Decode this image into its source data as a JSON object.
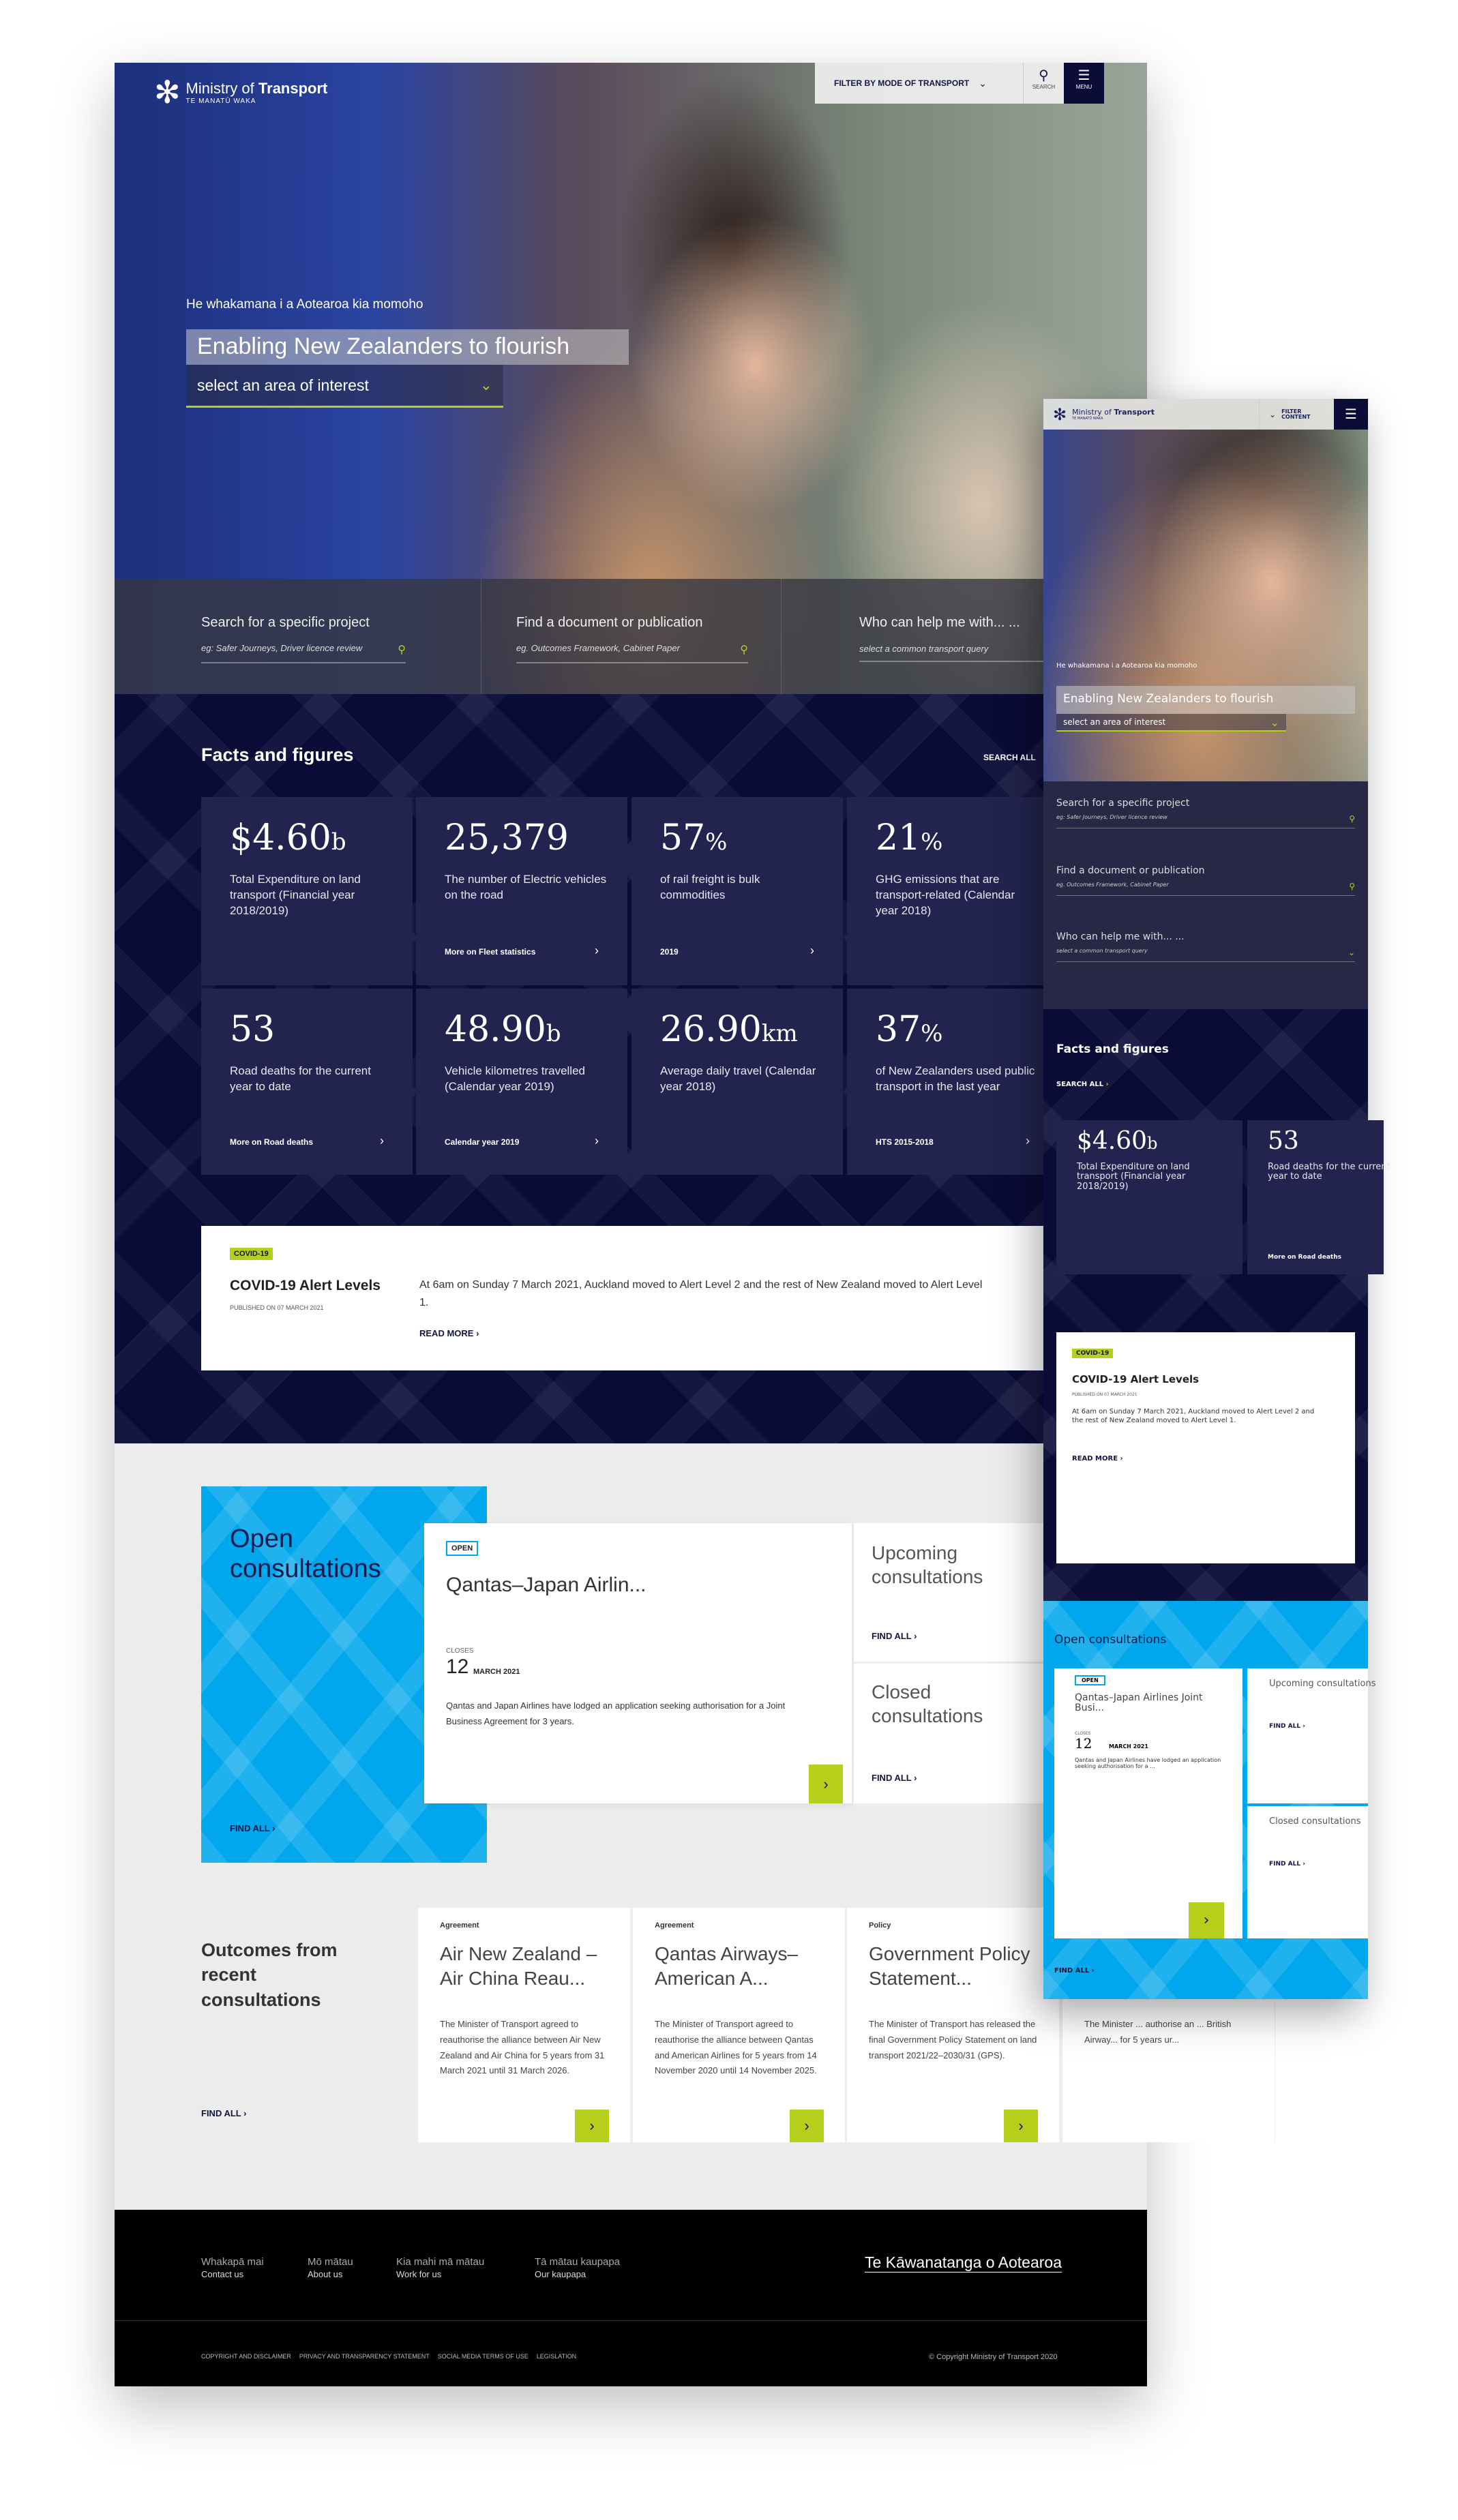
{
  "brand": {
    "name_light": "Ministry of ",
    "name_bold": "Transport",
    "sub": "TE MANATŪ WAKA"
  },
  "header": {
    "filter_label": "FILTER BY MODE OF TRANSPORT",
    "search_label": "SEARCH",
    "menu_label": "MENU"
  },
  "hero": {
    "tagline": "He whakamana i a Aotearoa kia momoho",
    "title": "Enabling New Zealanders to flourish",
    "select_placeholder": "select an area of interest"
  },
  "search": [
    {
      "label": "Search for a specific project",
      "placeholder": "eg: Safer Journeys, Driver licence review",
      "icon": "search-icon"
    },
    {
      "label": "Find a document or publication",
      "placeholder": "eg. Outcomes Framework, Cabinet Paper",
      "icon": "search-icon"
    },
    {
      "label": "Who can help me with... ...",
      "placeholder": "select a common transport query",
      "icon": "chevron-down-icon"
    }
  ],
  "facts": {
    "title": "Facts and figures",
    "search_all": "SEARCH ALL",
    "items": [
      {
        "value": "$4.60",
        "unit": "b",
        "label": "Total Expenditure on land transport (Financial year 2018/2019)",
        "link": ""
      },
      {
        "value": "25,379",
        "unit": "",
        "label": "The number of Electric vehicles on the road",
        "link": "More on Fleet statistics"
      },
      {
        "value": "57",
        "unit": "%",
        "label": "of rail freight is bulk commodities",
        "link": "2019"
      },
      {
        "value": "21",
        "unit": "%",
        "label": "GHG emissions that are transport-related (Calendar year 2018)",
        "link": ""
      },
      {
        "value": "53",
        "unit": "",
        "label": "Road deaths for the current year to date",
        "link": "More on Road deaths"
      },
      {
        "value": "48.90",
        "unit": "b",
        "label": "Vehicle kilometres travelled (Calendar year 2019)",
        "link": "Calendar year 2019"
      },
      {
        "value": "26.90",
        "unit": "km",
        "label": "Average daily travel (Calendar year 2018)",
        "link": ""
      },
      {
        "value": "37",
        "unit": "%",
        "label": "of New Zealanders used public transport in the last year",
        "link": "HTS 2015-2018"
      }
    ]
  },
  "covid": {
    "tag": "COVID-19",
    "title": "COVID-19 Alert Levels",
    "published": "PUBLISHED ON 07 MARCH 2021",
    "body": "At 6am on Sunday 7 March 2021, Auckland moved to Alert Level 2 and the rest of New Zealand moved to Alert Level 1.",
    "read_more": "READ MORE"
  },
  "consultations": {
    "title": "Open consultations",
    "find_all": "FIND ALL",
    "open_card": {
      "badge": "OPEN",
      "title": "Qantas–Japan Airlin...",
      "title_mobile": "Qantas–Japan Airlines Joint Busi...",
      "closes_label": "CLOSES",
      "day": "12",
      "month": "MARCH 2021",
      "body": "Qantas and Japan Airlines have lodged an application seeking authorisation for a Joint Business Agreement for 3 years.",
      "body_mobile": "Qantas and Japan Airlines have lodged an application seeking authorisation for a ..."
    },
    "upcoming": {
      "title": "Upcoming consultations",
      "link": "FIND ALL"
    },
    "closed": {
      "title": "Closed consultations",
      "link": "FIND ALL"
    }
  },
  "outcomes": {
    "title": "Outcomes from recent consultations",
    "find_all": "FIND ALL",
    "items": [
      {
        "type": "Agreement",
        "title": "Air New Zealand – Air China Reau...",
        "body": "The Minister of Transport agreed to reauthorise the alliance between Air New Zealand and Air China for 5 years from 31 March 2021 until 31 March 2026."
      },
      {
        "type": "Agreement",
        "title": "Qantas Airways–American A...",
        "body": "The Minister of Transport agreed to reauthorise the alliance between Qantas and American Airlines for 5 years from 14 November 2020 until 14 November 2025."
      },
      {
        "type": "Policy",
        "title": "Government Policy Statement...",
        "body": "The Minister of Transport  has released the final Government Policy Statement on land transport 2021/22–2030/31 (GPS)."
      },
      {
        "type": "",
        "title": "",
        "body": "The Minister ... authorise an ... British Airway... for 5 years ur..."
      }
    ]
  },
  "footer": {
    "links": [
      {
        "maori": "Whakapā mai",
        "english": "Contact us"
      },
      {
        "maori": "Mō mātau",
        "english": "About us"
      },
      {
        "maori": "Kia mahi mā mātau",
        "english": "Work for us"
      },
      {
        "maori": "Tā mātau kaupapa",
        "english": "Our kaupapa"
      }
    ],
    "govt_logo": "Te Kāwanatanga o Aotearoa",
    "legal": [
      "COPYRIGHT AND DISCLAIMER",
      "PRIVACY AND TRANSPARENCY STATEMENT",
      "SOCIAL MEDIA TERMS OF USE",
      "LEGISLATION"
    ],
    "copyright": "© Copyright Ministry of Transport 2020"
  },
  "mobile": {
    "filter_label_1": "FILTER",
    "filter_label_2": "CONTENT",
    "road_deaths_link": "More on Road deaths"
  },
  "colors": {
    "navy": "#0a0b36",
    "card": "#22244f",
    "lime": "#b5cf1a",
    "blue": "#00a7ec",
    "footer": "#000000"
  }
}
